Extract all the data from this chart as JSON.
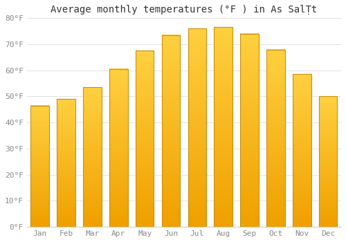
{
  "title": "Average monthly temperatures (°F ) in As SalṬt",
  "months": [
    "Jan",
    "Feb",
    "Mar",
    "Apr",
    "May",
    "Jun",
    "Jul",
    "Aug",
    "Sep",
    "Oct",
    "Nov",
    "Dec"
  ],
  "values": [
    46.5,
    49.0,
    53.5,
    60.5,
    67.5,
    73.5,
    76.0,
    76.5,
    74.0,
    68.0,
    58.5,
    50.0
  ],
  "bar_color_bottom": "#F0A000",
  "bar_color_top": "#FFD040",
  "bar_edge_color": "#C8900A",
  "ylim": [
    0,
    80
  ],
  "yticks": [
    0,
    10,
    20,
    30,
    40,
    50,
    60,
    70,
    80
  ],
  "ytick_labels": [
    "0°F",
    "10°F",
    "20°F",
    "30°F",
    "40°F",
    "50°F",
    "60°F",
    "70°F",
    "80°F"
  ],
  "background_color": "#ffffff",
  "grid_color": "#dddddd",
  "title_fontsize": 10,
  "tick_fontsize": 8,
  "font_family": "monospace",
  "tick_color": "#888888",
  "title_color": "#333333"
}
